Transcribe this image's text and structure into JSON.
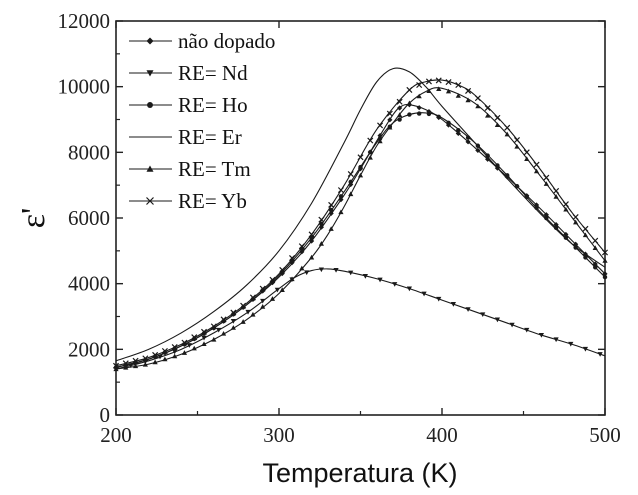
{
  "chart_data": {
    "type": "line",
    "title": "",
    "xlabel": "Temperatura (K)",
    "ylabel": "ε'",
    "xlim": [
      200,
      500
    ],
    "ylim": [
      0,
      12000
    ],
    "xticks": [
      "200",
      "300",
      "400",
      "500"
    ],
    "yticks": [
      "0",
      "2000",
      "4000",
      "6000",
      "8000",
      "10000",
      "12000"
    ],
    "grid": false,
    "legend_position": "top-left",
    "series": [
      {
        "name": "não dopado",
        "marker": "diamond",
        "color": "#1a1a1a",
        "x": [
          200,
          220,
          240,
          260,
          280,
          300,
          320,
          340,
          350,
          360,
          370,
          375,
          380,
          390,
          400,
          420,
          440,
          460,
          480,
          500
        ],
        "y": [
          1450,
          1700,
          2100,
          2650,
          3350,
          4200,
          5300,
          6700,
          7500,
          8350,
          9150,
          9400,
          9450,
          9300,
          9000,
          8150,
          7250,
          6300,
          5300,
          4300
        ]
      },
      {
        "name": "RE= Nd",
        "marker": "triangle-down",
        "color": "#1a1a1a",
        "x": [
          200,
          220,
          240,
          260,
          280,
          300,
          310,
          320,
          330,
          340,
          360,
          380,
          400,
          420,
          440,
          460,
          480,
          500
        ],
        "y": [
          1400,
          1650,
          2000,
          2500,
          3100,
          3850,
          4200,
          4400,
          4450,
          4380,
          4150,
          3850,
          3500,
          3150,
          2800,
          2450,
          2150,
          1800
        ]
      },
      {
        "name": "RE= Ho",
        "marker": "circle",
        "color": "#1a1a1a",
        "x": [
          200,
          220,
          240,
          260,
          280,
          300,
          320,
          340,
          360,
          370,
          380,
          390,
          400,
          420,
          440,
          460,
          480,
          500
        ],
        "y": [
          1450,
          1700,
          2100,
          2650,
          3350,
          4250,
          5400,
          6800,
          8300,
          8900,
          9150,
          9200,
          9050,
          8300,
          7300,
          6200,
          5200,
          4200
        ]
      },
      {
        "name": "RE= Er",
        "marker": "none",
        "color": "#1a1a1a",
        "x": [
          200,
          220,
          240,
          260,
          280,
          300,
          320,
          340,
          350,
          360,
          370,
          380,
          390,
          400,
          420,
          440,
          460,
          480,
          500
        ],
        "y": [
          1650,
          2000,
          2500,
          3150,
          3950,
          5000,
          6450,
          8300,
          9300,
          10150,
          10550,
          10450,
          10000,
          9400,
          8300,
          7200,
          6150,
          5200,
          4500
        ]
      },
      {
        "name": "RE= Tm",
        "marker": "triangle-up",
        "color": "#1a1a1a",
        "x": [
          200,
          220,
          240,
          260,
          280,
          300,
          320,
          330,
          340,
          350,
          360,
          370,
          380,
          390,
          400,
          420,
          440,
          460,
          480,
          500
        ],
        "y": [
          1400,
          1550,
          1850,
          2300,
          2900,
          3700,
          4800,
          5500,
          6350,
          7300,
          8200,
          8900,
          9500,
          9850,
          9950,
          9500,
          8550,
          7300,
          6000,
          4700
        ]
      },
      {
        "name": "RE= Yb",
        "marker": "x",
        "color": "#1a1a1a",
        "x": [
          200,
          220,
          240,
          260,
          280,
          300,
          320,
          340,
          360,
          380,
          390,
          400,
          410,
          420,
          440,
          460,
          480,
          500
        ],
        "y": [
          1500,
          1750,
          2150,
          2700,
          3400,
          4300,
          5500,
          7000,
          8700,
          9900,
          10150,
          10200,
          10050,
          9750,
          8750,
          7500,
          6150,
          4950
        ]
      }
    ]
  }
}
